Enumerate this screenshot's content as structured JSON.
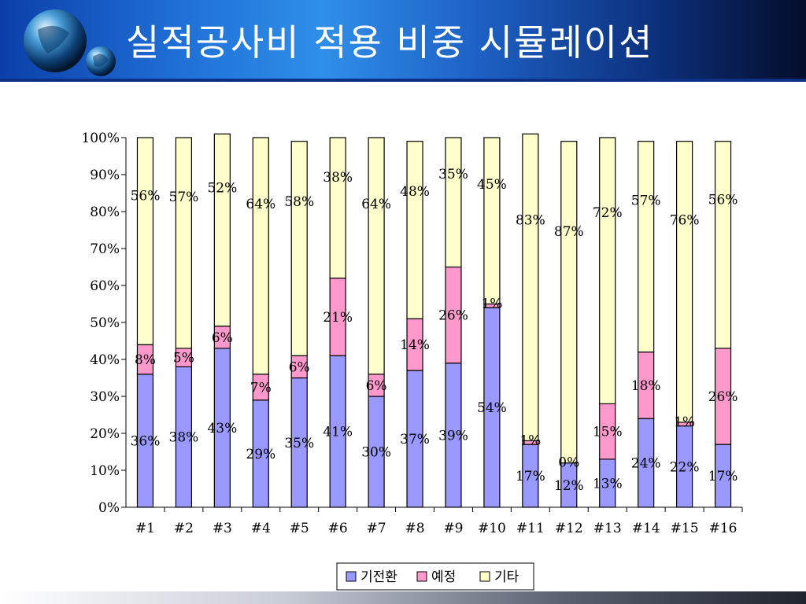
{
  "slide": {
    "title": "실적공사비 적용 비중 시뮬레이션"
  },
  "chart_data": {
    "type": "bar",
    "stacked": true,
    "percent": true,
    "categories": [
      "#1",
      "#2",
      "#3",
      "#4",
      "#5",
      "#6",
      "#7",
      "#8",
      "#9",
      "#10",
      "#11",
      "#12",
      "#13",
      "#14",
      "#15",
      "#16"
    ],
    "series": [
      {
        "name": "기전환",
        "color": "#9999ff",
        "values": [
          36,
          38,
          43,
          29,
          35,
          41,
          30,
          37,
          39,
          54,
          17,
          12,
          13,
          24,
          22,
          17
        ],
        "labels": [
          "36%",
          "38%",
          "43%",
          "29%",
          "35%",
          "41%",
          "30%",
          "37%",
          "39%",
          "54%",
          "17%",
          "12%",
          "13%",
          "24%",
          "22%",
          "17%"
        ]
      },
      {
        "name": "예정",
        "color": "#ff99cc",
        "values": [
          8,
          5,
          6,
          7,
          6,
          21,
          6,
          14,
          26,
          1,
          1,
          0,
          15,
          18,
          1,
          26
        ],
        "labels": [
          "8%",
          "5%",
          "6%",
          "7%",
          "6%",
          "21%",
          "6%",
          "14%",
          "26%",
          "1%",
          "1%",
          "0%",
          "15%",
          "18%",
          "1%",
          "26%"
        ]
      },
      {
        "name": "기타",
        "color": "#ffffcc",
        "values": [
          56,
          57,
          52,
          64,
          58,
          38,
          64,
          48,
          35,
          45,
          83,
          87,
          72,
          57,
          76,
          56
        ],
        "labels": [
          "56%",
          "57%",
          "52%",
          "64%",
          "58%",
          "38%",
          "64%",
          "48%",
          "35%",
          "45%",
          "83%",
          "87%",
          "72%",
          "57%",
          "76%",
          "56%"
        ]
      }
    ],
    "yticks": [
      "0%",
      "10%",
      "20%",
      "30%",
      "40%",
      "50%",
      "60%",
      "70%",
      "80%",
      "90%",
      "100%"
    ],
    "ylim": [
      0,
      100
    ],
    "legend_position": "bottom-center"
  }
}
